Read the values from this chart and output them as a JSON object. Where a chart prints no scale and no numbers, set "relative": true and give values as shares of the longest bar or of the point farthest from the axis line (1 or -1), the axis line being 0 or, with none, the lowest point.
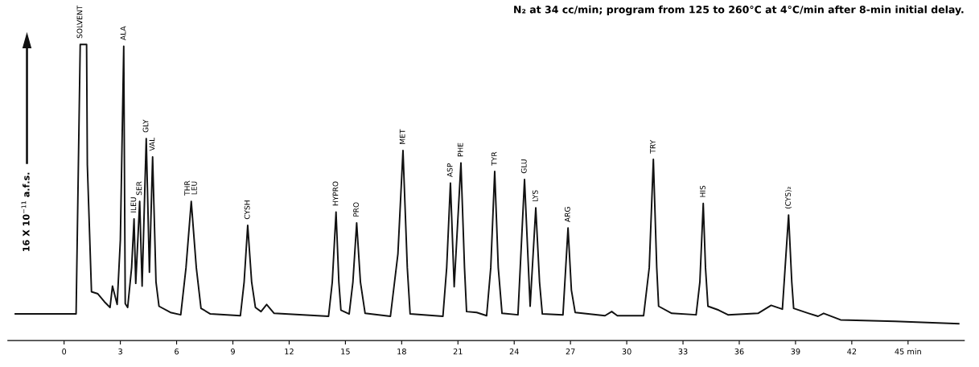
{
  "chart_data": {
    "type": "line",
    "relative": true,
    "ylabel": "16 X 10$^{−11}$ a.f.s.",
    "x": [
      -2.6,
      0.64,
      0.86,
      1.2,
      1.24,
      1.46,
      1.8,
      2.15,
      2.45,
      2.58,
      2.83,
      3.0,
      3.18,
      3.26,
      3.39,
      3.6,
      3.73,
      3.82,
      4.03,
      4.16,
      4.38,
      4.55,
      4.72,
      4.9,
      5.06,
      5.67,
      6.22,
      6.5,
      6.78,
      7.05,
      7.3,
      7.8,
      9.4,
      9.6,
      9.79,
      10.0,
      10.2,
      10.5,
      10.8,
      11.2,
      14.1,
      14.3,
      14.5,
      14.65,
      14.76,
      15.2,
      15.4,
      15.6,
      15.8,
      16.05,
      17.4,
      17.8,
      18.07,
      18.3,
      18.45,
      20.2,
      20.4,
      20.6,
      20.8,
      21.16,
      21.35,
      21.46,
      22.0,
      22.53,
      22.75,
      22.96,
      23.15,
      23.35,
      24.2,
      24.55,
      24.85,
      25.15,
      25.35,
      25.5,
      26.6,
      26.87,
      27.05,
      27.25,
      28.84,
      29.2,
      29.5,
      30.9,
      31.2,
      31.42,
      31.6,
      31.7,
      32.4,
      33.7,
      33.9,
      34.08,
      34.2,
      34.33,
      34.9,
      35.4,
      37.0,
      37.7,
      38.3,
      38.63,
      38.8,
      38.9,
      39.7,
      40.2,
      40.5,
      41.4,
      44.3,
      47.7
    ],
    "values": [
      0.09,
      0.09,
      1.0,
      1.0,
      0.593,
      0.165,
      0.158,
      0.131,
      0.112,
      0.184,
      0.122,
      0.34,
      0.994,
      0.125,
      0.112,
      0.246,
      0.411,
      0.193,
      0.47,
      0.184,
      0.682,
      0.231,
      0.62,
      0.198,
      0.116,
      0.095,
      0.087,
      0.246,
      0.47,
      0.246,
      0.109,
      0.09,
      0.084,
      0.198,
      0.389,
      0.198,
      0.112,
      0.098,
      0.122,
      0.092,
      0.082,
      0.198,
      0.434,
      0.198,
      0.103,
      0.09,
      0.198,
      0.397,
      0.198,
      0.092,
      0.082,
      0.293,
      0.642,
      0.246,
      0.09,
      0.082,
      0.246,
      0.532,
      0.182,
      0.6,
      0.246,
      0.098,
      0.095,
      0.084,
      0.246,
      0.571,
      0.246,
      0.092,
      0.087,
      0.544,
      0.116,
      0.448,
      0.198,
      0.09,
      0.087,
      0.38,
      0.17,
      0.095,
      0.084,
      0.098,
      0.084,
      0.084,
      0.246,
      0.612,
      0.246,
      0.116,
      0.092,
      0.087,
      0.198,
      0.463,
      0.246,
      0.116,
      0.103,
      0.087,
      0.092,
      0.119,
      0.106,
      0.424,
      0.198,
      0.109,
      0.092,
      0.082,
      0.092,
      0.07,
      0.065,
      0.057
    ],
    "color": "#111111",
    "xlim": [
      -3,
      48
    ],
    "xticks": [
      0,
      3,
      6,
      9,
      12,
      15,
      18,
      21,
      24,
      27,
      30,
      33,
      36,
      39,
      42,
      {
        "value": 45,
        "label": "45 min"
      }
    ],
    "annotations": [
      {
        "text": "SOLVENT",
        "x": 0.86,
        "y": 1.0
      },
      {
        "text": "ALA",
        "x": 3.18,
        "y": 0.994
      },
      {
        "text": "ILEU",
        "x": 3.73,
        "y": 0.411
      },
      {
        "text": "SER",
        "x": 4.03,
        "y": 0.47
      },
      {
        "text": "GLY",
        "x": 4.38,
        "y": 0.682
      },
      {
        "text": "VAL",
        "x": 4.72,
        "y": 0.62
      },
      {
        "text": "THR\nLEU",
        "x": 6.78,
        "y": 0.47
      },
      {
        "text": "CYSH",
        "x": 9.79,
        "y": 0.389
      },
      {
        "text": "HYPRO",
        "x": 14.5,
        "y": 0.434
      },
      {
        "text": "PRO",
        "x": 15.6,
        "y": 0.397
      },
      {
        "text": "MET",
        "x": 18.07,
        "y": 0.642
      },
      {
        "text": "ASP",
        "x": 20.6,
        "y": 0.532
      },
      {
        "text": "PHE",
        "x": 21.16,
        "y": 0.6
      },
      {
        "text": "TYR",
        "x": 22.96,
        "y": 0.571
      },
      {
        "text": "GLU",
        "x": 24.55,
        "y": 0.544
      },
      {
        "text": "LYS",
        "x": 25.15,
        "y": 0.448
      },
      {
        "text": "ARG",
        "x": 26.87,
        "y": 0.38
      },
      {
        "text": "TRY",
        "x": 31.42,
        "y": 0.612
      },
      {
        "text": "HIS",
        "x": 34.08,
        "y": 0.463
      },
      {
        "text": "(CYS)₂",
        "x": 38.63,
        "y": 0.424
      },
      "N₂ at 34 cc/min; program from 125 to 260°C at 4°C/min after 8-min initial delay."
    ]
  }
}
